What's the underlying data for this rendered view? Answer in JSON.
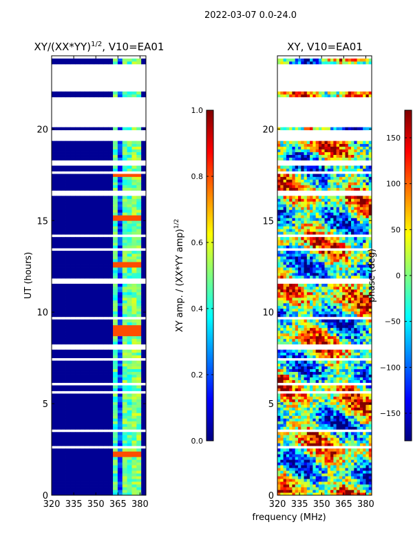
{
  "figure": {
    "suptitle": "2022-03-07 0.0-24.0",
    "xlabel_shared": "frequency (MHz)"
  },
  "colors": {
    "no_data": "#ffffff",
    "colormap": "jet",
    "jet_stops": [
      "#00007f",
      "#0000ff",
      "#007fff",
      "#00ffff",
      "#7fff7f",
      "#ffff00",
      "#ff7f00",
      "#ff0000",
      "#7f0000"
    ]
  },
  "chart_data": [
    {
      "type": "heatmap",
      "title_main": "XY/(XX*YY)",
      "title_sup": "1/2",
      "title_rest": ", V10=EA01",
      "xlabel": "",
      "ylabel": "UT (hours)",
      "xlim": [
        320,
        384
      ],
      "ylim": [
        0,
        24
      ],
      "xticks": [
        320,
        335,
        350,
        365,
        380
      ],
      "yticks": [
        0,
        5,
        10,
        15,
        20
      ],
      "colorbar": {
        "label_main": "XY amp. / (XX*YY amp)",
        "label_sup": "1/2",
        "range": [
          0.0,
          1.0
        ],
        "ticks": [
          "0.0",
          "0.2",
          "0.4",
          "0.6",
          "0.8",
          "1.0"
        ],
        "tick_values": [
          0.0,
          0.2,
          0.4,
          0.6,
          0.8,
          1.0
        ]
      },
      "background_value": 0.02,
      "bands": [
        {
          "f0": 362,
          "f1": 365,
          "value": 0.45
        },
        {
          "f0": 365,
          "f1": 366.5,
          "value": 0.18
        },
        {
          "f0": 366.5,
          "f1": 370,
          "value": 0.48
        },
        {
          "f0": 370,
          "f1": 371.5,
          "value": 0.12
        },
        {
          "f0": 371.5,
          "f1": 375,
          "value": 0.45
        },
        {
          "f0": 375,
          "f1": 376,
          "value": 0.15
        },
        {
          "f0": 376,
          "f1": 380,
          "value": 0.5
        },
        {
          "f0": 380,
          "f1": 381,
          "value": 0.25
        }
      ],
      "hot_rows_hours": [
        2.2,
        8.8,
        9.2,
        12.6,
        15.2,
        17.6
      ],
      "hot_row_value": 0.8
    },
    {
      "type": "heatmap",
      "title_main": "XY, V10=EA01",
      "title_sup": "",
      "title_rest": "",
      "xlabel": "frequency (MHz)",
      "ylabel": "",
      "xlim": [
        320,
        384
      ],
      "ylim": [
        0,
        24
      ],
      "xticks": [
        320,
        335,
        350,
        365,
        380
      ],
      "yticks": [
        0,
        5,
        10,
        15,
        20
      ],
      "colorbar": {
        "label_main": "phase (deg)",
        "label_sup": "",
        "range": [
          -180,
          180
        ],
        "ticks": [
          "−150",
          "−100",
          "−50",
          "0",
          "50",
          "100",
          "150"
        ],
        "tick_values": [
          -150,
          -100,
          -50,
          0,
          50,
          100,
          150
        ]
      },
      "value_range": [
        -180,
        180
      ]
    }
  ],
  "data_gaps_hours": [
    [
      21.1,
      21.8
    ],
    [
      19.3,
      19.9
    ],
    [
      18.0,
      18.3
    ],
    [
      17.5,
      17.7
    ],
    [
      16.4,
      16.6
    ],
    [
      14.1,
      14.3
    ],
    [
      13.3,
      13.45
    ],
    [
      11.6,
      11.8
    ],
    [
      10.9,
      11.0
    ],
    [
      9.6,
      9.75
    ],
    [
      8.0,
      8.2
    ],
    [
      7.4,
      7.5
    ],
    [
      6.0,
      6.15
    ],
    [
      5.6,
      5.75
    ],
    [
      3.4,
      3.55
    ],
    [
      2.6,
      2.7
    ],
    [
      1.3,
      1.4
    ],
    [
      0.55,
      0.65
    ]
  ],
  "data_blocks_hours": [
    [
      23.6,
      23.85
    ],
    [
      21.8,
      21.95
    ],
    [
      19.9,
      20.05
    ]
  ]
}
